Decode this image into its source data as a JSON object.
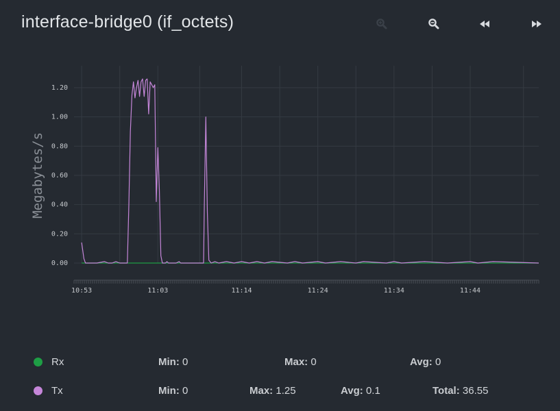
{
  "title": "interface-bridge0 (if_octets)",
  "toolbar": {
    "zoom_in_icon": "zoom-in-icon",
    "zoom_out_icon": "zoom-out-icon",
    "back_icon": "rewind-icon",
    "forward_icon": "fast-forward-icon"
  },
  "colors": {
    "background": "#252a31",
    "grid": "#353b42",
    "axis_text": "#c5c8cc",
    "rx": "#1e9e45",
    "tx": "#c586d9"
  },
  "chart_data": {
    "type": "line",
    "title": "interface-bridge0 (if_octets)",
    "ylabel": "Megabytes/s",
    "xlabel": "",
    "ylim": [
      0,
      1.35
    ],
    "yticks": [
      "0.00",
      "0.20",
      "0.40",
      "0.60",
      "0.80",
      "1.00",
      "1.20"
    ],
    "ytick_values": [
      0,
      0.2,
      0.4,
      0.6,
      0.8,
      1.0,
      1.2
    ],
    "xlim": [
      "10:52",
      "11:53"
    ],
    "xticks": [
      "10:53",
      "11:03",
      "11:14",
      "11:24",
      "11:34",
      "11:44"
    ],
    "grid": true,
    "series": [
      {
        "name": "Rx",
        "color": "#1e9e45",
        "x": [
          "10:53",
          "10:59",
          "11:04",
          "11:53"
        ],
        "y": [
          0,
          0,
          0,
          0
        ]
      },
      {
        "name": "Tx",
        "color": "#c586d9",
        "x": [
          "10:53:00",
          "10:53:18",
          "10:53:30",
          "10:54:00",
          "10:55:00",
          "10:56:00",
          "10:56:30",
          "10:57:00",
          "10:57:30",
          "10:58:00",
          "10:59:00",
          "10:59:12",
          "10:59:24",
          "10:59:36",
          "10:59:48",
          "11:00:00",
          "11:00:12",
          "11:00:24",
          "11:00:36",
          "11:00:48",
          "11:01:00",
          "11:01:12",
          "11:01:24",
          "11:01:36",
          "11:01:48",
          "11:02:00",
          "11:02:12",
          "11:02:24",
          "11:02:36",
          "11:02:48",
          "11:03:00",
          "11:03:12",
          "11:03:24",
          "11:03:36",
          "11:03:48",
          "11:04:00",
          "11:04:12",
          "11:04:24",
          "11:04:36",
          "11:04:48",
          "11:05:00",
          "11:05:24",
          "11:05:48",
          "11:06:00",
          "11:06:30",
          "11:07:00",
          "11:08:00",
          "11:08:30",
          "11:09:00",
          "11:09:06",
          "11:09:18",
          "11:09:30",
          "11:09:42",
          "11:10:00",
          "11:10:30",
          "11:11:00",
          "11:12:00",
          "11:13:00",
          "11:14:00",
          "11:15:00",
          "11:16:00",
          "11:17:00",
          "11:18:00",
          "11:20:00",
          "11:21:00",
          "11:22:00",
          "11:24:00",
          "11:25:00",
          "11:27:00",
          "11:29:00",
          "11:30:00",
          "11:33:00",
          "11:34:00",
          "11:35:00",
          "11:38:00",
          "11:41:00",
          "11:44:00",
          "11:45:00",
          "11:47:00",
          "11:53:00"
        ],
        "y": [
          0.14,
          0.03,
          0.0,
          0.0,
          0.0,
          0.01,
          0.0,
          0.0,
          0.01,
          0.0,
          0.0,
          0.4,
          0.9,
          1.15,
          1.24,
          1.13,
          1.2,
          1.25,
          1.14,
          1.24,
          1.26,
          1.14,
          1.25,
          1.26,
          1.02,
          1.24,
          1.22,
          1.2,
          1.22,
          0.42,
          0.79,
          0.5,
          0.05,
          0.0,
          0.0,
          0.0,
          0.01,
          0.0,
          0.0,
          0.0,
          0.0,
          0.0,
          0.01,
          0.0,
          0.0,
          0.0,
          0.0,
          0.0,
          0.0,
          0.4,
          1.0,
          0.35,
          0.02,
          0.0,
          0.01,
          0.0,
          0.01,
          0.0,
          0.01,
          0.0,
          0.01,
          0.0,
          0.01,
          0.0,
          0.01,
          0.0,
          0.01,
          0.0,
          0.01,
          0.0,
          0.01,
          0.0,
          0.01,
          0.0,
          0.01,
          0.0,
          0.01,
          0.0,
          0.01,
          0.0
        ]
      }
    ]
  },
  "legend": [
    {
      "name": "Rx",
      "color": "#1e9e45",
      "min_label": "Min:",
      "min": "0",
      "max_label": "Max:",
      "max": "0",
      "avg_label": "Avg:",
      "avg": "0"
    },
    {
      "name": "Tx",
      "color": "#c586d9",
      "min_label": "Min:",
      "min": "0",
      "max_label": "Max:",
      "max": "1.25",
      "avg_label": "Avg:",
      "avg": "0.1",
      "total_label": "Total:",
      "total": "36.55"
    }
  ]
}
